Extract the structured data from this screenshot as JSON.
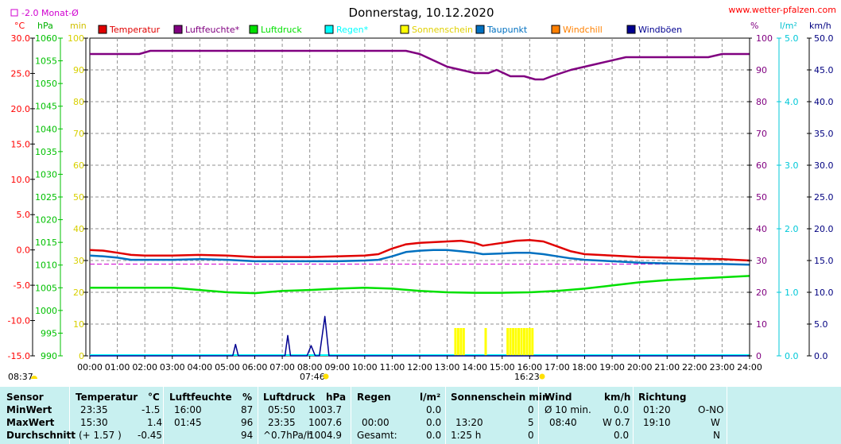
{
  "header": {
    "title": "Donnerstag, 10.12.2020",
    "website": "www.wetter-pfalzen.com",
    "monthly_avg_label": "-2.0 Monat-Ø"
  },
  "units": {
    "celsius": "°C",
    "hpa": "hPa",
    "min": "min",
    "percent": "%",
    "rain": "l/m²",
    "wind": "km/h"
  },
  "legend": [
    {
      "label": "Temperatur",
      "color": "#e00000"
    },
    {
      "label": "Luftfeuchte*",
      "color": "#800080"
    },
    {
      "label": "Luftdruck",
      "color": "#00e000"
    },
    {
      "label": "Regen*",
      "color": "#00ffff"
    },
    {
      "label": "Sonnenschein",
      "color": "#ffff00"
    },
    {
      "label": "Taupunkt",
      "color": "#0070c0"
    },
    {
      "label": "Windchill",
      "color": "#ff8000"
    },
    {
      "label": "Windböen",
      "color": "#000090"
    }
  ],
  "chart_data": {
    "type": "line",
    "x_ticks": [
      "00:00",
      "01:00",
      "02:00",
      "03:00",
      "04:00",
      "05:00",
      "06:00",
      "07:00",
      "08:00",
      "09:00",
      "10:00",
      "11:00",
      "12:00",
      "13:00",
      "14:00",
      "15:00",
      "16:00",
      "17:00",
      "18:00",
      "19:00",
      "20:00",
      "21:00",
      "22:00",
      "23:00",
      "24:00"
    ],
    "xlim": [
      0,
      24
    ],
    "y_axes": {
      "temperature": {
        "ticks": [
          "30.0",
          "25.0",
          "20.0",
          "15.0",
          "10.0",
          "5.0",
          "0.0",
          "-5.0",
          "-10.0",
          "-15.0"
        ],
        "ylim": [
          -15,
          30
        ]
      },
      "pressure": {
        "ticks": [
          "1060",
          "1055",
          "1050",
          "1045",
          "1040",
          "1035",
          "1030",
          "1025",
          "1020",
          "1015",
          "1010",
          "1005",
          "1000",
          "995",
          "990"
        ],
        "ylim": [
          990,
          1060
        ]
      },
      "sunshine_min": {
        "ticks": [
          "100",
          "90",
          "80",
          "70",
          "60",
          "50",
          "40",
          "30",
          "20",
          "10",
          "0"
        ],
        "ylim": [
          0,
          100
        ]
      },
      "humidity": {
        "ticks": [
          "100",
          "90",
          "80",
          "70",
          "60",
          "50",
          "40",
          "30",
          "20",
          "10",
          "0"
        ],
        "ylim": [
          0,
          100
        ]
      },
      "rain": {
        "ticks": [
          "5.0",
          "4.0",
          "3.0",
          "2.0",
          "1.0",
          "0.0"
        ],
        "ylim": [
          0,
          5
        ]
      },
      "wind": {
        "ticks": [
          "50.0",
          "45.0",
          "40.0",
          "35.0",
          "30.0",
          "25.0",
          "20.0",
          "15.0",
          "10.0",
          "5.0",
          "0.0"
        ],
        "ylim": [
          0,
          50
        ]
      }
    },
    "monthly_avg_temperature": -2.0,
    "series": [
      {
        "name": "Temperatur",
        "axis": "temperature",
        "color": "#e00000",
        "x": [
          0,
          0.5,
          1,
          1.5,
          2,
          3,
          4,
          5,
          6,
          7,
          8,
          9,
          10,
          10.5,
          11,
          11.5,
          12,
          12.5,
          13,
          13.5,
          14,
          14.3,
          15,
          15.5,
          16,
          16.5,
          17,
          17.5,
          18,
          19,
          20,
          21,
          22,
          23,
          24
        ],
        "y": [
          0.0,
          -0.1,
          -0.4,
          -0.7,
          -0.8,
          -0.8,
          -0.7,
          -0.8,
          -1.0,
          -1.0,
          -1.0,
          -0.9,
          -0.8,
          -0.6,
          0.2,
          0.8,
          1.0,
          1.1,
          1.2,
          1.3,
          1.0,
          0.6,
          1.0,
          1.3,
          1.4,
          1.2,
          0.5,
          -0.2,
          -0.6,
          -0.8,
          -1.0,
          -1.1,
          -1.2,
          -1.3,
          -1.5
        ]
      },
      {
        "name": "Luftfeuchte*",
        "axis": "humidity",
        "color": "#800080",
        "x": [
          0,
          1,
          1.8,
          2.2,
          3,
          4,
          5,
          6,
          7,
          8,
          9,
          10,
          11,
          11.5,
          12,
          12.5,
          13,
          13.5,
          14,
          14.5,
          14.8,
          15.3,
          15.8,
          16.2,
          16.5,
          16.8,
          17.5,
          18.5,
          19.5,
          20.5,
          21.5,
          22.5,
          23,
          24
        ],
        "y": [
          95,
          95,
          95,
          96,
          96,
          96,
          96,
          96,
          96,
          96,
          96,
          96,
          96,
          96,
          95,
          93,
          91,
          90,
          89,
          89,
          90,
          88,
          88,
          87,
          87,
          88,
          90,
          92,
          94,
          94,
          94,
          94,
          95,
          95
        ]
      },
      {
        "name": "Luftdruck",
        "axis": "pressure",
        "color": "#00e000",
        "x": [
          0,
          1,
          2,
          3,
          4,
          5,
          6,
          7,
          8,
          9,
          10,
          11,
          12,
          13,
          14,
          15,
          16,
          17,
          18,
          19,
          20,
          21,
          22,
          23,
          24
        ],
        "y": [
          1005.0,
          1005.0,
          1005.0,
          1005.0,
          1004.5,
          1004.0,
          1003.8,
          1004.3,
          1004.5,
          1004.8,
          1005.0,
          1004.8,
          1004.3,
          1004.0,
          1003.9,
          1003.9,
          1004.0,
          1004.3,
          1004.8,
          1005.5,
          1006.2,
          1006.7,
          1007.0,
          1007.3,
          1007.6
        ]
      },
      {
        "name": "Taupunkt",
        "axis": "temperature",
        "color": "#0070c0",
        "x": [
          0,
          0.5,
          1,
          1.5,
          2,
          3,
          4,
          5,
          6,
          7,
          8,
          9,
          10,
          10.5,
          11,
          11.5,
          12,
          12.5,
          13,
          13.5,
          14,
          14.3,
          15,
          15.5,
          16,
          16.5,
          17,
          17.5,
          18,
          19,
          20,
          21,
          22,
          23,
          24
        ],
        "y": [
          -0.8,
          -0.9,
          -1.1,
          -1.4,
          -1.4,
          -1.4,
          -1.3,
          -1.4,
          -1.6,
          -1.6,
          -1.6,
          -1.6,
          -1.5,
          -1.4,
          -0.9,
          -0.3,
          -0.1,
          0.0,
          0.0,
          -0.2,
          -0.4,
          -0.6,
          -0.5,
          -0.4,
          -0.4,
          -0.6,
          -0.9,
          -1.2,
          -1.4,
          -1.6,
          -1.8,
          -1.9,
          -2.0,
          -2.0,
          -2.1
        ]
      },
      {
        "name": "Windböen",
        "axis": "wind",
        "color": "#000090",
        "x": [
          0,
          5.2,
          5.3,
          5.4,
          7.1,
          7.2,
          7.3,
          7.9,
          8.05,
          8.2,
          8.35,
          8.55,
          8.7,
          24
        ],
        "y": [
          0,
          0,
          1.8,
          0,
          0,
          3.2,
          0,
          0,
          1.6,
          0,
          0,
          6.2,
          0,
          0
        ]
      }
    ],
    "sunshine_bars": {
      "axis": "sunshine_min",
      "x": [
        13.3,
        13.4,
        13.5,
        13.6,
        14.4,
        15.2,
        15.3,
        15.4,
        15.5,
        15.6,
        15.7,
        15.8,
        15.9,
        16.0,
        16.1
      ],
      "y": [
        5,
        5,
        5,
        5,
        5,
        5,
        5,
        5,
        5,
        5,
        5,
        5,
        5,
        5,
        5
      ]
    },
    "sunrise": "07:46",
    "sunset": "16:23",
    "current_time": "08:37"
  },
  "table": {
    "rows": [
      "Sensor",
      "MinWert",
      "MaxWert",
      "Durchschnitt"
    ],
    "temperatur": {
      "header": "Temperatur",
      "unit": "°C",
      "min_time": "23:35",
      "min_val": "-1.5",
      "max_time": "15:30",
      "max_val": "1.4",
      "avg_note": "(+ 1.57 )",
      "avg_val": "-0.45"
    },
    "luftfeuchte": {
      "header": "Luftfeuchte",
      "unit": "%",
      "min_time": "16:00",
      "min_val": "87",
      "max_time": "01:45",
      "max_val": "96",
      "avg_val": "94"
    },
    "luftdruck": {
      "header": "Luftdruck",
      "unit": "hPa",
      "min_time": "05:50",
      "min_val": "1003.7",
      "max_time": "23:35",
      "max_val": "1007.6",
      "avg_note": "^0.7hPa/h",
      "avg_val": "1004.9"
    },
    "regen": {
      "header": "Regen",
      "unit": "l/m²",
      "min_val": "0.0",
      "max_time": "00:00",
      "max_val": "0.0",
      "avg_note": "Gesamt:",
      "avg_val": "0.0"
    },
    "sonnenschein": {
      "header": "Sonnenschein min",
      "min_val": "0",
      "max_time": "13:20",
      "max_val": "5",
      "avg_note": "1:25 h",
      "avg_val": "0"
    },
    "wind": {
      "header": "Wind",
      "unit": "km/h",
      "min_note": "Ø 10 min.",
      "min_val": "0.0",
      "max_time": "08:40",
      "max_val": "W 0.7",
      "avg_val": "0.0"
    },
    "richtung": {
      "header": "Richtung",
      "min_time": "01:20",
      "min_val": "O-NO",
      "max_time": "19:10",
      "max_val": "W",
      "avg_val": "N"
    }
  }
}
